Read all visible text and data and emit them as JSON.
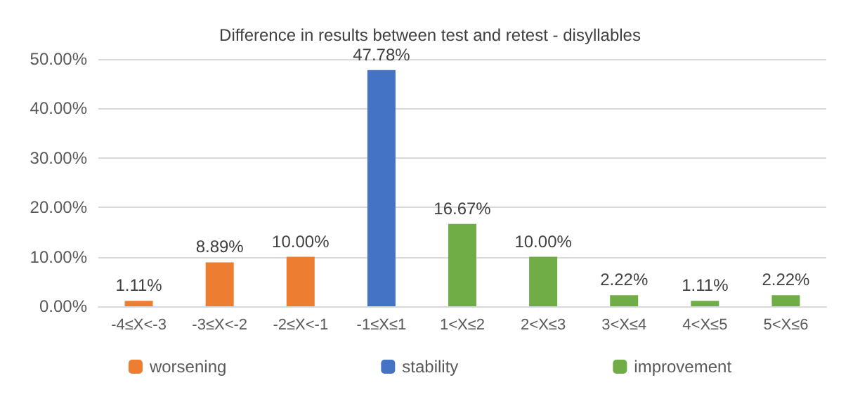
{
  "chart_data": {
    "type": "bar",
    "title": "Difference in results between test and retest - disyllables",
    "categories": [
      "-4≤X<-3",
      "-3≤X<-2",
      "-2≤X<-1",
      "-1≤X≤1",
      "1<X≤2",
      "2<X≤3",
      "3<X≤4",
      "4<X≤5",
      "5<X≤6"
    ],
    "series": [
      {
        "name": "worsening",
        "color": "#ed7d31",
        "values": [
          1.11,
          8.89,
          10.0,
          null,
          null,
          null,
          null,
          null,
          null
        ],
        "value_labels": [
          "1.11%",
          "8.89%",
          "10.00%",
          null,
          null,
          null,
          null,
          null,
          null
        ]
      },
      {
        "name": "stability",
        "color": "#4472c4",
        "values": [
          null,
          null,
          null,
          47.78,
          null,
          null,
          null,
          null,
          null
        ],
        "value_labels": [
          null,
          null,
          null,
          "47.78%",
          null,
          null,
          null,
          null,
          null
        ]
      },
      {
        "name": "improvement",
        "color": "#70ad47",
        "values": [
          null,
          null,
          null,
          null,
          16.67,
          10.0,
          2.22,
          1.11,
          2.22
        ],
        "value_labels": [
          null,
          null,
          null,
          null,
          "16.67%",
          "10.00%",
          "2.22%",
          "1.11%",
          "2.22%"
        ]
      }
    ],
    "ylim": [
      0,
      50
    ],
    "yticks": [
      {
        "value": 0,
        "label": "0.00%"
      },
      {
        "value": 10,
        "label": "10.00%"
      },
      {
        "value": 20,
        "label": "20.00%"
      },
      {
        "value": 30,
        "label": "30.00%"
      },
      {
        "value": 40,
        "label": "40.00%"
      },
      {
        "value": 50,
        "label": "50.00%"
      }
    ],
    "grid": "y",
    "legend": "bottom"
  }
}
